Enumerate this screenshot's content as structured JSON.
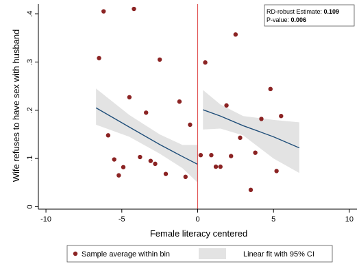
{
  "chart_data": {
    "type": "scatter",
    "xlabel": "Female literacy centered",
    "ylabel": "Wife refuses to have sex with husband",
    "xlim": [
      -10.5,
      10.5
    ],
    "ylim": [
      -0.005,
      0.42
    ],
    "x_ticks": [
      -10,
      -5,
      0,
      5,
      10
    ],
    "x_tick_labels": [
      "-10",
      "-5",
      "0",
      "5",
      "10"
    ],
    "y_ticks": [
      0,
      0.1,
      0.2,
      0.3,
      0.4
    ],
    "y_tick_labels": [
      "0",
      ".1",
      ".2",
      ".3",
      ".4"
    ],
    "cutoff_x": 0,
    "grid": false,
    "series": [
      {
        "name": "Sample average within bin",
        "kind": "points",
        "color": "#8b2323",
        "x": [
          -6.5,
          -6.2,
          -5.9,
          -5.5,
          -5.2,
          -4.9,
          -4.5,
          -4.2,
          -3.8,
          -3.4,
          -3.1,
          -2.8,
          -2.5,
          -2.1,
          -1.2,
          -0.8,
          -0.5,
          0.2,
          0.5,
          0.9,
          1.2,
          1.5,
          1.9,
          2.2,
          2.5,
          2.8,
          3.5,
          3.8,
          4.2,
          4.8,
          5.2,
          5.5
        ],
        "y": [
          0.308,
          0.405,
          0.148,
          0.098,
          0.065,
          0.082,
          0.227,
          0.41,
          0.103,
          0.195,
          0.095,
          0.089,
          0.305,
          0.068,
          0.218,
          0.062,
          0.17,
          0.107,
          0.299,
          0.107,
          0.083,
          0.083,
          0.21,
          0.105,
          0.357,
          0.143,
          0.035,
          0.112,
          0.182,
          0.244,
          0.074,
          0.188
        ]
      },
      {
        "name": "Linear fit with 95% CI",
        "kind": "fit",
        "line_color": "#1f4e79",
        "band_color": "#e3e3e3",
        "segments": [
          {
            "x": [
              -6.7,
              -4.5,
              -2.5,
              -1.0,
              0
            ],
            "fit": [
              0.205,
              0.165,
              0.129,
              0.104,
              0.088
            ],
            "lower": [
              0.17,
              0.145,
              0.11,
              0.08,
              0.05
            ],
            "upper": [
              0.245,
              0.19,
              0.15,
              0.128,
              0.128
            ]
          },
          {
            "x": [
              0.35,
              1.5,
              3.0,
              5.0,
              6.7
            ],
            "fit": [
              0.201,
              0.188,
              0.168,
              0.145,
              0.122
            ],
            "lower": [
              0.16,
              0.162,
              0.148,
              0.1,
              0.07
            ],
            "upper": [
              0.242,
              0.212,
              0.188,
              0.18,
              0.175
            ]
          }
        ]
      }
    ],
    "annotation": {
      "estimate_label": "RD-robust Estimate: ",
      "estimate_value": "0.109",
      "pvalue_label": "P-value: ",
      "pvalue_value": "0.006"
    },
    "legend": {
      "position": "bottom",
      "items": [
        "Sample average within bin",
        "Linear fit with 95% CI"
      ]
    }
  }
}
